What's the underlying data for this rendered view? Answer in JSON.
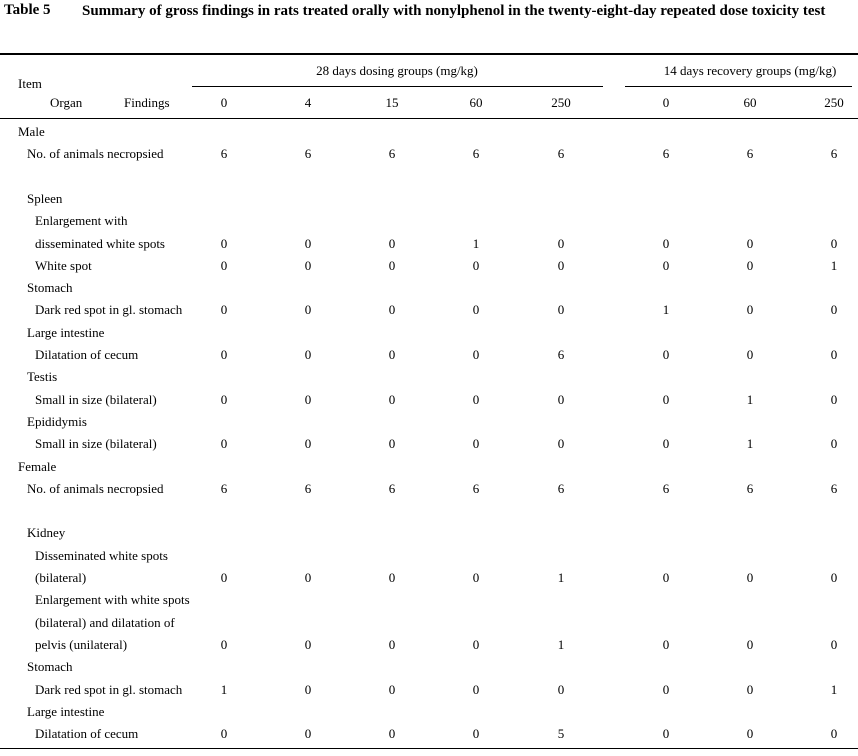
{
  "table_number": "Table 5",
  "title": "Summary of gross findings in rats treated orally with nonylphenol in the twenty-eight-day repeated dose toxicity test",
  "header": {
    "item": "Item",
    "organ": "Organ",
    "findings": "Findings",
    "groups": [
      {
        "label": "28 days dosing groups (mg/kg)",
        "doses": [
          0,
          4,
          15,
          60,
          250
        ]
      },
      {
        "label": "14 days recovery groups (mg/kg)",
        "doses": [
          0,
          60,
          250
        ]
      }
    ]
  },
  "sections": [
    {
      "sex": "Male",
      "necropsied": {
        "label": "No. of animals necropsied",
        "values": [
          6,
          6,
          6,
          6,
          6,
          6,
          6,
          6
        ]
      },
      "organs": [
        {
          "organ": "Spleen",
          "findings": [
            {
              "lines": [
                "Enlargement with",
                "disseminated white spots"
              ],
              "values": [
                0,
                0,
                0,
                1,
                0,
                0,
                0,
                0
              ]
            },
            {
              "lines": [
                "White spot"
              ],
              "values": [
                0,
                0,
                0,
                0,
                0,
                0,
                0,
                1
              ]
            }
          ]
        },
        {
          "organ": "Stomach",
          "findings": [
            {
              "lines": [
                "Dark red spot in gl. stomach"
              ],
              "values": [
                0,
                0,
                0,
                0,
                0,
                1,
                0,
                0
              ]
            }
          ]
        },
        {
          "organ": "Large intestine",
          "findings": [
            {
              "lines": [
                "Dilatation of cecum"
              ],
              "values": [
                0,
                0,
                0,
                0,
                6,
                0,
                0,
                0
              ]
            }
          ]
        },
        {
          "organ": "Testis",
          "findings": [
            {
              "lines": [
                "Small in size (bilateral)"
              ],
              "values": [
                0,
                0,
                0,
                0,
                0,
                0,
                1,
                0
              ]
            }
          ]
        },
        {
          "organ": "Epididymis",
          "findings": [
            {
              "lines": [
                "Small in size (bilateral)"
              ],
              "values": [
                0,
                0,
                0,
                0,
                0,
                0,
                1,
                0
              ]
            }
          ]
        }
      ]
    },
    {
      "sex": "Female",
      "necropsied": {
        "label": "No. of animals necropsied",
        "values": [
          6,
          6,
          6,
          6,
          6,
          6,
          6,
          6
        ]
      },
      "organs": [
        {
          "organ": "Kidney",
          "findings": [
            {
              "lines": [
                "Disseminated white spots",
                "(bilateral)"
              ],
              "values": [
                0,
                0,
                0,
                0,
                1,
                0,
                0,
                0
              ]
            },
            {
              "lines": [
                "Enlargement with white spots",
                "(bilateral) and dilatation of",
                "pelvis (unilateral)"
              ],
              "values": [
                0,
                0,
                0,
                0,
                1,
                0,
                0,
                0
              ]
            }
          ]
        },
        {
          "organ": "Stomach",
          "findings": [
            {
              "lines": [
                "Dark red spot in gl. stomach"
              ],
              "values": [
                1,
                0,
                0,
                0,
                0,
                0,
                0,
                1
              ]
            }
          ]
        },
        {
          "organ": "Large intestine",
          "findings": [
            {
              "lines": [
                "Dilatation of cecum"
              ],
              "values": [
                0,
                0,
                0,
                0,
                5,
                0,
                0,
                0
              ]
            }
          ]
        }
      ]
    }
  ]
}
